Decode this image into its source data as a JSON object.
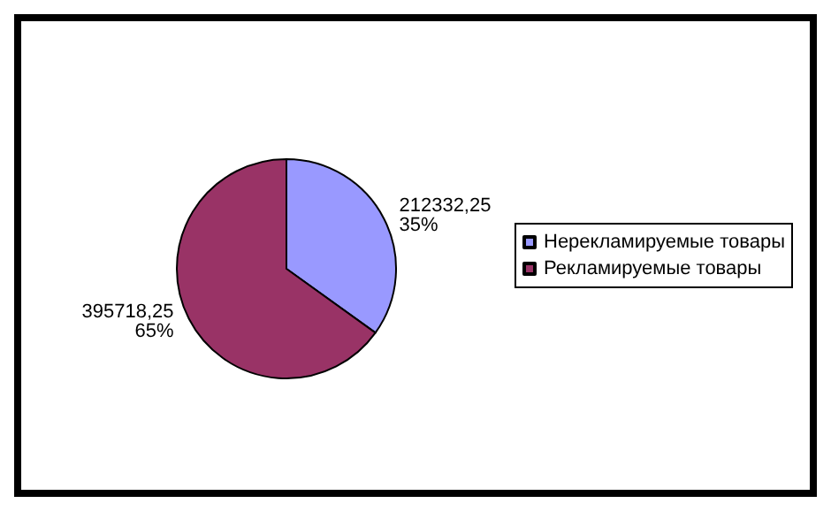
{
  "chart_data": {
    "type": "pie",
    "categories": [
      "Нерекламируемые товары",
      "Рекламируемые товары"
    ],
    "values": [
      212332.25,
      395718.25
    ],
    "colors": [
      "#9999ff",
      "#993366"
    ],
    "value_labels": [
      "212332,25\n35%",
      "395718,25\n65%"
    ],
    "legend": "right"
  }
}
